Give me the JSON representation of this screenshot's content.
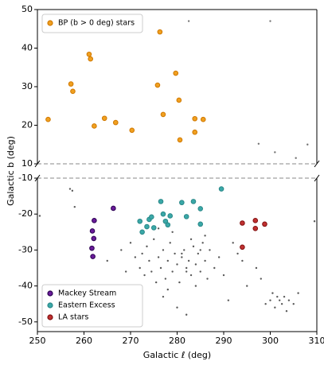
{
  "chart_data": [
    {
      "type": "scatter",
      "ylabel": "Galactic b (deg)",
      "xlim": [
        250,
        310
      ],
      "ylim": [
        10,
        50
      ],
      "yticks": [
        10,
        20,
        30,
        40,
        50
      ],
      "legend": "upper left",
      "dashed_edge": 10,
      "series": [
        {
          "color": "#444444",
          "x": [
            282.5,
            300,
            297.5,
            301,
            305.5,
            308
          ],
          "y": [
            47,
            47,
            15.2,
            13,
            11.5,
            15
          ]
        },
        {
          "name": "BP (b > 0 deg) stars",
          "color": "#f0a020",
          "edge": "#d07800",
          "x": [
            252.3,
            257.2,
            257.6,
            261.1,
            261.4,
            262.2,
            264.4,
            266.8,
            270.3,
            275.8,
            276.3,
            277.0,
            279.7,
            280.4,
            280.6,
            283.8,
            283.8,
            285.6
          ],
          "y": [
            21.5,
            30.7,
            28.8,
            38.4,
            37.2,
            19.8,
            21.8,
            20.7,
            18.7,
            30.4,
            44.2,
            22.8,
            33.5,
            26.5,
            16.2,
            21.7,
            18.2,
            21.5
          ]
        }
      ]
    },
    {
      "type": "scatter",
      "xlabel": "Galactic ℓ (deg)",
      "xlim": [
        250,
        310
      ],
      "xticks": [
        250,
        260,
        270,
        280,
        290,
        300,
        310
      ],
      "ylim": [
        -52.7,
        -10
      ],
      "yticks": [
        -10,
        -20,
        -30,
        -40,
        -50
      ],
      "legend": "lower left",
      "dashed_edge": -10,
      "series": [
        {
          "color": "#222222",
          "x": [
            250.5,
            257,
            257.5,
            258,
            265,
            268,
            269,
            270,
            271,
            271.5,
            272,
            272.5,
            273,
            273.5,
            274,
            274.5,
            275,
            275.5,
            276,
            276.5,
            277,
            277.5,
            278,
            278.5,
            279,
            279.5,
            280,
            280.5,
            281,
            281.5,
            282,
            282.5,
            283,
            283.5,
            284,
            284.5,
            285,
            285.5,
            286,
            286.5,
            287,
            288,
            289,
            290,
            291,
            292,
            293,
            294,
            295,
            297,
            298,
            299,
            300,
            300.5,
            301,
            301.5,
            302,
            302.5,
            303,
            303.5,
            304,
            305,
            306,
            309.5,
            280,
            282,
            279,
            283,
            278,
            284,
            276,
            286,
            277,
            285,
            281,
            282
          ],
          "y": [
            -20.5,
            -13,
            -13.5,
            -18,
            -33,
            -30,
            -36,
            -28,
            -32,
            -40,
            -35,
            -31,
            -37,
            -29,
            -33,
            -36,
            -27,
            -39,
            -32,
            -35,
            -30,
            -38,
            -33,
            -28,
            -36,
            -31,
            -34,
            -39,
            -32,
            -30,
            -35,
            -33,
            -37,
            -29,
            -34,
            -31,
            -36,
            -28,
            -33,
            -38,
            -30,
            -35,
            -32,
            -37,
            -44,
            -28,
            -31,
            -33,
            -40,
            -35,
            -38,
            -45,
            -44,
            -42,
            -46,
            -43,
            -44,
            -45,
            -43,
            -47,
            -44,
            -45,
            -42,
            -22,
            -46,
            -48,
            -25,
            -27,
            -41,
            -40,
            -24,
            -26,
            -43,
            -30,
            -31,
            -36
          ]
        },
        {
          "name": "Mackey Stream",
          "color": "#6a1b9a",
          "edge": "#2a0050",
          "x": [
            262.2,
            261.8,
            262.1,
            261.7,
            261.9,
            266.3
          ],
          "y": [
            -21.8,
            -24.7,
            -26.8,
            -29.5,
            -31.8,
            -18.4
          ]
        },
        {
          "name": "Eastern Excess",
          "color": "#3aa8a8",
          "edge": "#2a8888",
          "x": [
            272,
            272.5,
            273.5,
            274,
            274.5,
            275,
            276.5,
            277,
            277.5,
            278,
            278.5,
            281,
            282,
            283.5,
            285,
            285,
            289.5
          ],
          "y": [
            -22,
            -25,
            -23.5,
            -21.5,
            -20.8,
            -23.8,
            -16.5,
            -20,
            -22,
            -23,
            -20.5,
            -16.8,
            -20.7,
            -16.5,
            -18.5,
            -22.8,
            -13
          ]
        },
        {
          "name": "LA stars",
          "color": "#c03030",
          "edge": "#801010",
          "x": [
            294,
            296.8,
            296.8,
            298.8,
            294
          ],
          "y": [
            -22.5,
            -21.8,
            -24,
            -22.8,
            -29.2
          ]
        }
      ]
    }
  ]
}
